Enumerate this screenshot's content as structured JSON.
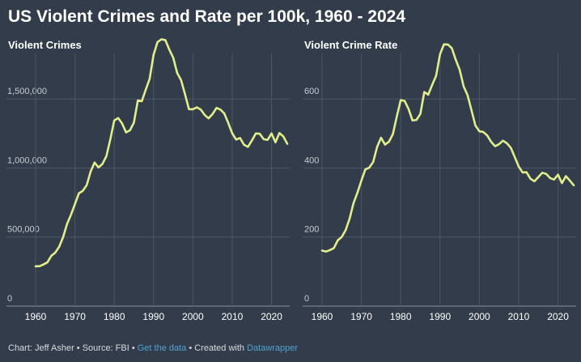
{
  "title": "US Violent Crimes and Rate per 100k, 1960 - 2024",
  "footer": {
    "chart_credit": "Chart: Jeff Asher",
    "sep1": " • ",
    "source": "Source: FBI",
    "sep2": " • ",
    "get_data": "Get the data",
    "sep3": " • ",
    "created_with": "Created with ",
    "datawrapper": "Datawrapper"
  },
  "colors": {
    "background": "#333c4a",
    "line": "#e2ee8c",
    "grid": "#4d5666",
    "link": "#4fa3d4"
  },
  "chart_data": [
    {
      "type": "line",
      "title": "Violent Crimes",
      "xlabel": "",
      "ylabel": "",
      "xlim": [
        1960,
        2024
      ],
      "ylim": [
        0,
        1900000
      ],
      "x_ticks": [
        1960,
        1970,
        1980,
        1990,
        2000,
        2010,
        2020
      ],
      "x_tick_labels": [
        "1960",
        "1970",
        "1980",
        "1990",
        "2000",
        "2010",
        "2020"
      ],
      "y_ticks": [
        0,
        500000,
        1000000,
        1500000
      ],
      "y_tick_labels": [
        "0",
        "500,000",
        "1,000,000",
        "1,500,000"
      ],
      "grid": true,
      "series": [
        {
          "name": "Violent Crimes",
          "x": [
            1960,
            1961,
            1962,
            1963,
            1964,
            1965,
            1966,
            1967,
            1968,
            1969,
            1970,
            1971,
            1972,
            1973,
            1974,
            1975,
            1976,
            1977,
            1978,
            1979,
            1980,
            1981,
            1982,
            1983,
            1984,
            1985,
            1986,
            1987,
            1988,
            1989,
            1990,
            1991,
            1992,
            1993,
            1994,
            1995,
            1996,
            1997,
            1998,
            1999,
            2000,
            2001,
            2002,
            2003,
            2004,
            2005,
            2006,
            2007,
            2008,
            2009,
            2010,
            2011,
            2012,
            2013,
            2014,
            2015,
            2016,
            2017,
            2018,
            2019,
            2020,
            2021,
            2022,
            2023,
            2024
          ],
          "values": [
            288460,
            289390,
            301510,
            316970,
            364220,
            387390,
            430180,
            499930,
            595010,
            661870,
            738820,
            816500,
            834900,
            875910,
            974720,
            1039710,
            1004210,
            1029580,
            1085550,
            1208030,
            1344520,
            1361820,
            1322390,
            1258090,
            1273280,
            1328800,
            1489170,
            1484000,
            1566220,
            1646040,
            1820130,
            1911770,
            1932270,
            1926020,
            1857670,
            1798790,
            1688540,
            1636100,
            1533890,
            1426040,
            1425490,
            1439480,
            1423680,
            1383680,
            1360090,
            1390750,
            1435120,
            1422970,
            1394460,
            1325900,
            1251250,
            1206010,
            1217060,
            1168300,
            1153020,
            1199310,
            1250160,
            1247920,
            1208860,
            1203810,
            1250390,
            1186230,
            1253320,
            1228380,
            1175400
          ]
        }
      ]
    },
    {
      "type": "line",
      "title": "Violent Crime Rate",
      "xlabel": "",
      "ylabel": "",
      "xlim": [
        1960,
        2024
      ],
      "ylim": [
        0,
        760
      ],
      "x_ticks": [
        1960,
        1970,
        1980,
        1990,
        2000,
        2010,
        2020
      ],
      "x_tick_labels": [
        "1960",
        "1970",
        "1980",
        "1990",
        "2000",
        "2010",
        "2020"
      ],
      "y_ticks": [
        0,
        200,
        400,
        600
      ],
      "y_tick_labels": [
        "0",
        "200",
        "400",
        "600"
      ],
      "grid": true,
      "series": [
        {
          "name": "Violent Crime Rate",
          "x": [
            1960,
            1961,
            1962,
            1963,
            1964,
            1965,
            1966,
            1967,
            1968,
            1969,
            1970,
            1971,
            1972,
            1973,
            1974,
            1975,
            1976,
            1977,
            1978,
            1979,
            1980,
            1981,
            1982,
            1983,
            1984,
            1985,
            1986,
            1987,
            1988,
            1989,
            1990,
            1991,
            1992,
            1993,
            1994,
            1995,
            1996,
            1997,
            1998,
            1999,
            2000,
            2001,
            2002,
            2003,
            2004,
            2005,
            2006,
            2007,
            2008,
            2009,
            2010,
            2011,
            2012,
            2013,
            2014,
            2015,
            2016,
            2017,
            2018,
            2019,
            2020,
            2021,
            2022,
            2023,
            2024
          ],
          "values": [
            160.9,
            158.1,
            162.3,
            168.2,
            190.6,
            200.2,
            220.0,
            253.2,
            298.4,
            328.7,
            363.5,
            396.0,
            401.0,
            417.4,
            461.1,
            487.8,
            467.8,
            475.9,
            497.8,
            548.9,
            596.6,
            594.3,
            571.1,
            537.7,
            539.2,
            556.6,
            620.1,
            612.5,
            640.6,
            666.9,
            729.6,
            758.2,
            757.7,
            747.1,
            713.6,
            684.5,
            636.6,
            611.0,
            567.6,
            523.0,
            506.5,
            504.5,
            494.4,
            475.8,
            463.2,
            469.0,
            479.3,
            471.8,
            458.6,
            431.9,
            404.5,
            387.1,
            387.8,
            369.1,
            361.6,
            373.7,
            386.3,
            382.9,
            370.8,
            366.7,
            380.8,
            356.3,
            376.5,
            363.8,
            350.0
          ]
        }
      ]
    }
  ]
}
